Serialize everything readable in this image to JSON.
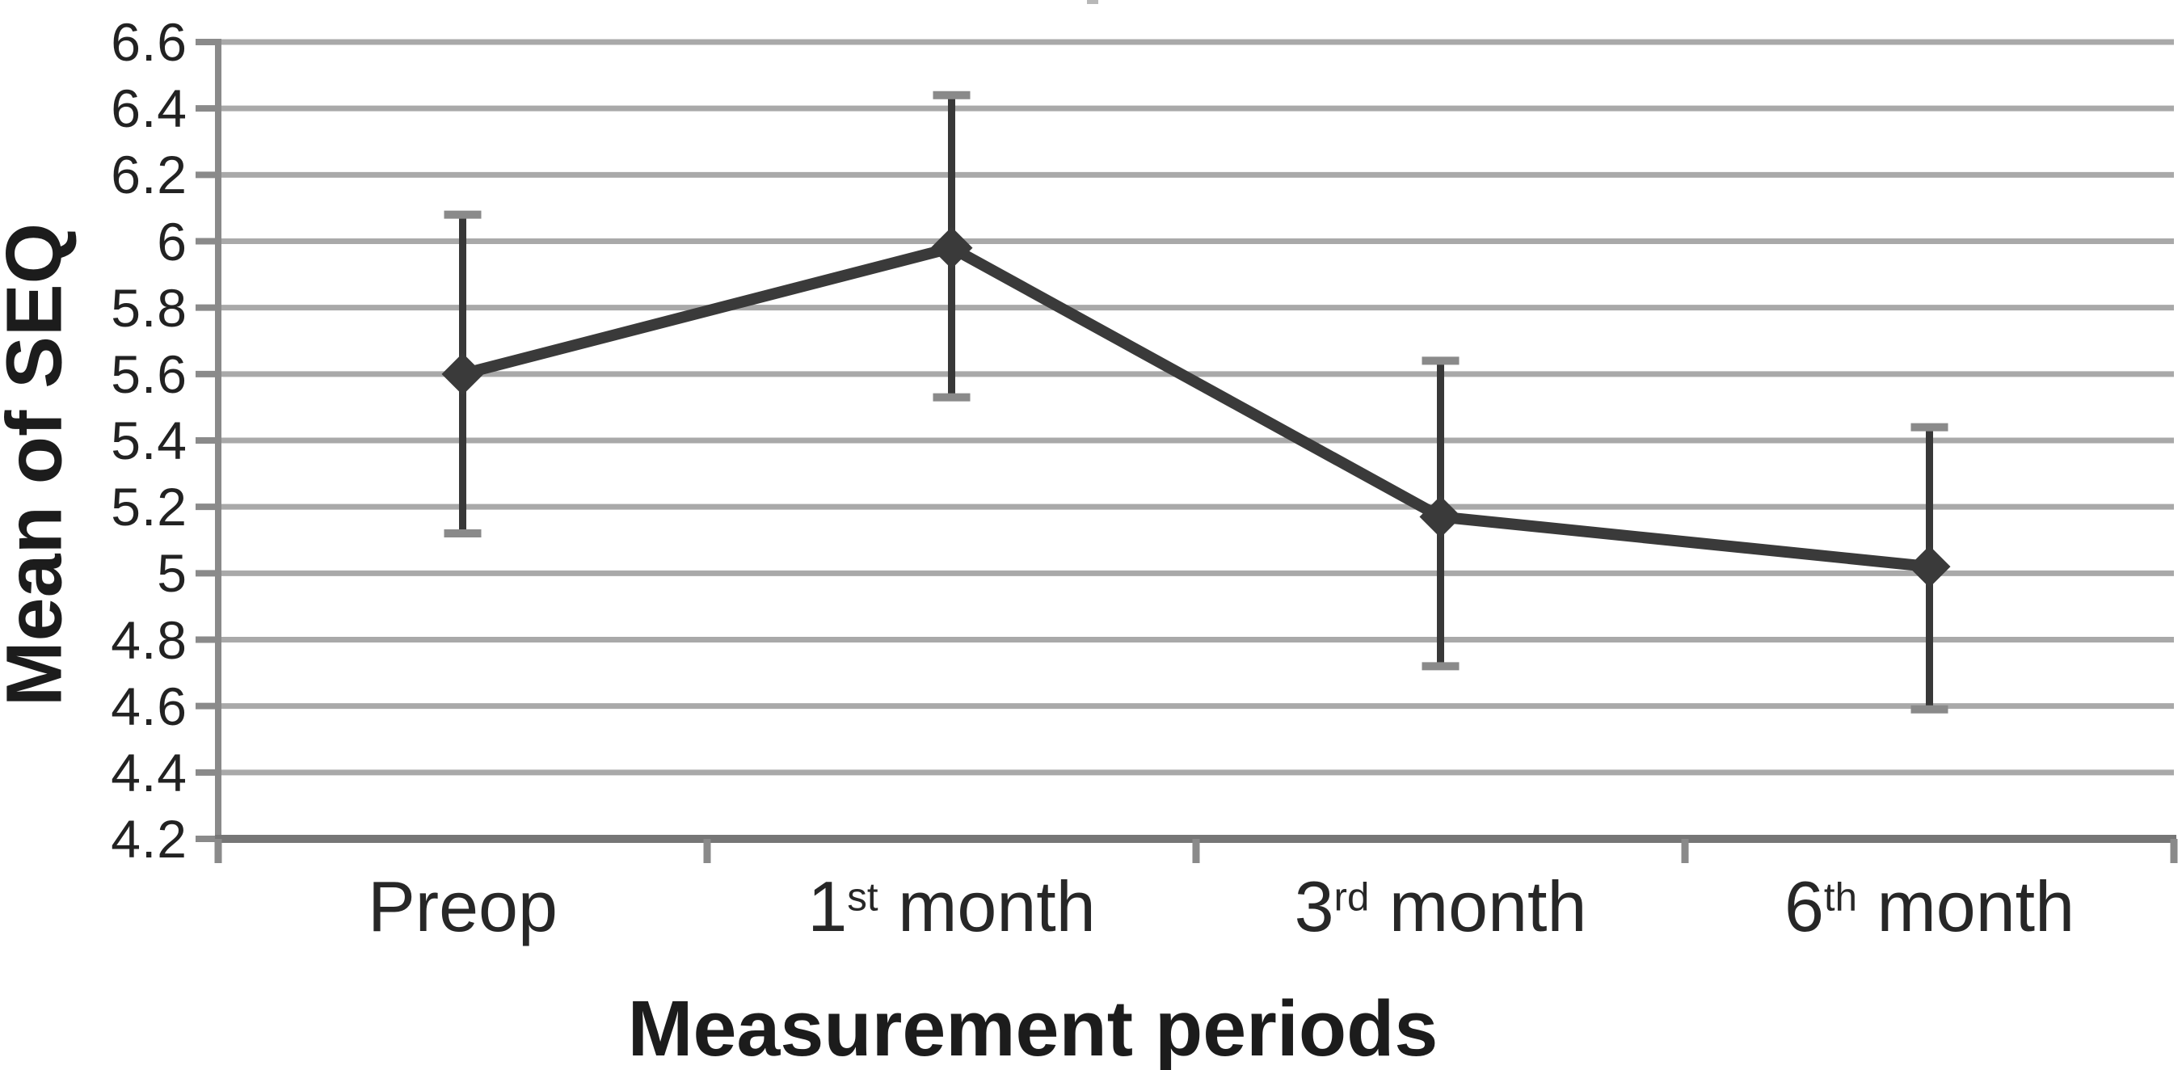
{
  "figure": {
    "note_top_artifact": "cropped-title-fragment"
  },
  "chart_data": {
    "type": "line",
    "title": "",
    "xlabel": "Measurement periods",
    "ylabel": "Mean of SEQ",
    "categories": [
      "Preop",
      "1st month",
      "3rd month",
      "6th month"
    ],
    "categories_rich": [
      {
        "pre": "Preop",
        "sup": "",
        "post": ""
      },
      {
        "pre": "1",
        "sup": "st",
        "post": " month"
      },
      {
        "pre": "3",
        "sup": "rd",
        "post": " month"
      },
      {
        "pre": "6",
        "sup": "th",
        "post": " month"
      }
    ],
    "series": [
      {
        "name": "Mean of SEQ",
        "marker": "diamond",
        "values": [
          5.6,
          5.98,
          5.17,
          5.02
        ],
        "error_low": [
          5.12,
          5.53,
          4.72,
          4.59
        ],
        "error_high": [
          6.08,
          6.44,
          5.64,
          5.44
        ]
      }
    ],
    "ylim": [
      4.2,
      6.6
    ],
    "ytick_step": 0.2,
    "yticks": [
      "6.6",
      "6.4",
      "6.2",
      "6",
      "5.8",
      "5.6",
      "5.4",
      "5.2",
      "5",
      "4.8",
      "4.6",
      "4.4",
      "4.2"
    ],
    "grid": "horizontal",
    "legend": "none",
    "colors": {
      "series": "#3a3a3a",
      "gridline": "#a9a9a9",
      "axis": "#8a8a8a",
      "x_axis": "#767676",
      "error_bar": "#383838",
      "error_cap": "#8a8a8a",
      "tick_text": "#222222",
      "label_text": "#1c1c1c"
    }
  }
}
